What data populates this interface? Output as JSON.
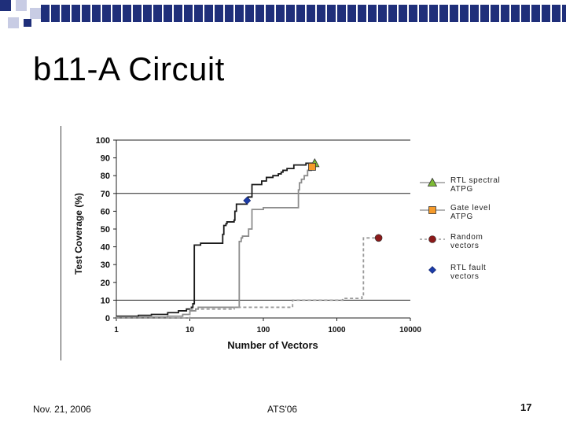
{
  "slide": {
    "title": "b11-A Circuit",
    "footer_date": "Nov. 21, 2006",
    "footer_conference": "ATS'06",
    "page_number": "17"
  },
  "colors": {
    "band": "#1f2f7a",
    "square_navy": "#1f2f7a",
    "square_light": "#c8cce4",
    "rtl_spectral_line": "#1a1a1a",
    "gate_level_line": "#8c8c8c",
    "random_line": "#9a9a9a",
    "rtl_spectral_marker": "#7dbb35",
    "gate_level_marker": "#f59a2a",
    "random_marker": "#8b1a1a",
    "rtl_fault_marker": "#1c3ca8"
  },
  "chart_data": {
    "type": "line",
    "xlabel": "Number of Vectors",
    "ylabel": "Test Coverage (%)",
    "x_scale": "log",
    "xlim": [
      1,
      10000
    ],
    "ylim": [
      0,
      100
    ],
    "x_ticks": [
      1,
      10,
      100,
      1000,
      10000
    ],
    "y_ticks": [
      0,
      10,
      20,
      30,
      40,
      50,
      60,
      70,
      80,
      90,
      100
    ],
    "gridlines_y": [
      10,
      70,
      100
    ],
    "legend_position": "right",
    "series": [
      {
        "name": "RTL spectral ATPG",
        "style": "solid",
        "color_key": "rtl_spectral_line",
        "x": [
          1,
          2,
          3,
          5,
          7,
          9,
          10.5,
          11,
          11.5,
          14,
          17,
          19,
          20,
          22,
          27,
          28,
          29,
          31,
          32,
          40,
          41,
          43,
          60,
          62,
          70,
          95,
          110,
          130,
          135,
          155,
          160,
          170,
          175,
          185,
          190,
          200,
          210,
          230,
          260,
          300,
          380,
          450,
          500
        ],
        "y": [
          1,
          1.5,
          2,
          3,
          4,
          5,
          6,
          8,
          41,
          42,
          42,
          42,
          42,
          42,
          42,
          47,
          52,
          53,
          54,
          55,
          60,
          64,
          66,
          68,
          75,
          77,
          79,
          79,
          80,
          80,
          81,
          81,
          82,
          83,
          83,
          83,
          84,
          84,
          86,
          86,
          87,
          87,
          87
        ]
      },
      {
        "name": "Gate level ATPG",
        "style": "solid",
        "color_key": "gate_level_line",
        "x": [
          1,
          5,
          8,
          10,
          12,
          13,
          20,
          45,
          47,
          50,
          52,
          60,
          63,
          70,
          100,
          200,
          250,
          290,
          300,
          310,
          330,
          360,
          400,
          450,
          500
        ],
        "y": [
          0.5,
          1,
          2,
          4,
          5,
          6,
          6,
          6,
          43,
          45,
          46,
          46,
          50,
          61,
          62,
          62,
          62,
          62,
          72,
          76,
          78,
          80,
          83,
          84,
          85
        ]
      },
      {
        "name": "Random vectors",
        "style": "dashed",
        "color_key": "random_line",
        "x": [
          1,
          10,
          40,
          100,
          230,
          250,
          400,
          600,
          1200,
          2200,
          2300,
          3000,
          3700
        ],
        "y": [
          0,
          5,
          6,
          6,
          6,
          10,
          10,
          10,
          11,
          12,
          45,
          45,
          45
        ]
      }
    ],
    "markers": [
      {
        "name": "RTL spectral ATPG",
        "x": 500,
        "y": 87,
        "shape": "triangle",
        "color_key": "rtl_spectral_marker"
      },
      {
        "name": "Gate level ATPG",
        "x": 460,
        "y": 85,
        "shape": "square",
        "color_key": "gate_level_marker"
      },
      {
        "name": "Random vectors",
        "x": 3700,
        "y": 45,
        "shape": "circle",
        "color_key": "random_marker"
      },
      {
        "name": "RTL fault vectors",
        "x": 60,
        "y": 66,
        "shape": "diamond",
        "color_key": "rtl_fault_marker"
      }
    ],
    "legend": [
      {
        "label_lines": [
          "RTL spectral",
          "ATPG"
        ],
        "shape": "triangle",
        "color_key": "rtl_spectral_marker",
        "line": "solid"
      },
      {
        "label_lines": [
          "Gate level",
          "ATPG"
        ],
        "shape": "square",
        "color_key": "gate_level_marker",
        "line": "solid"
      },
      {
        "label_lines": [
          "Random",
          "vectors"
        ],
        "shape": "circle",
        "color_key": "random_marker",
        "line": "dashed"
      },
      {
        "label_lines": [
          "RTL fault",
          "vectors"
        ],
        "shape": "diamond",
        "color_key": "rtl_fault_marker",
        "line": "none"
      }
    ]
  }
}
